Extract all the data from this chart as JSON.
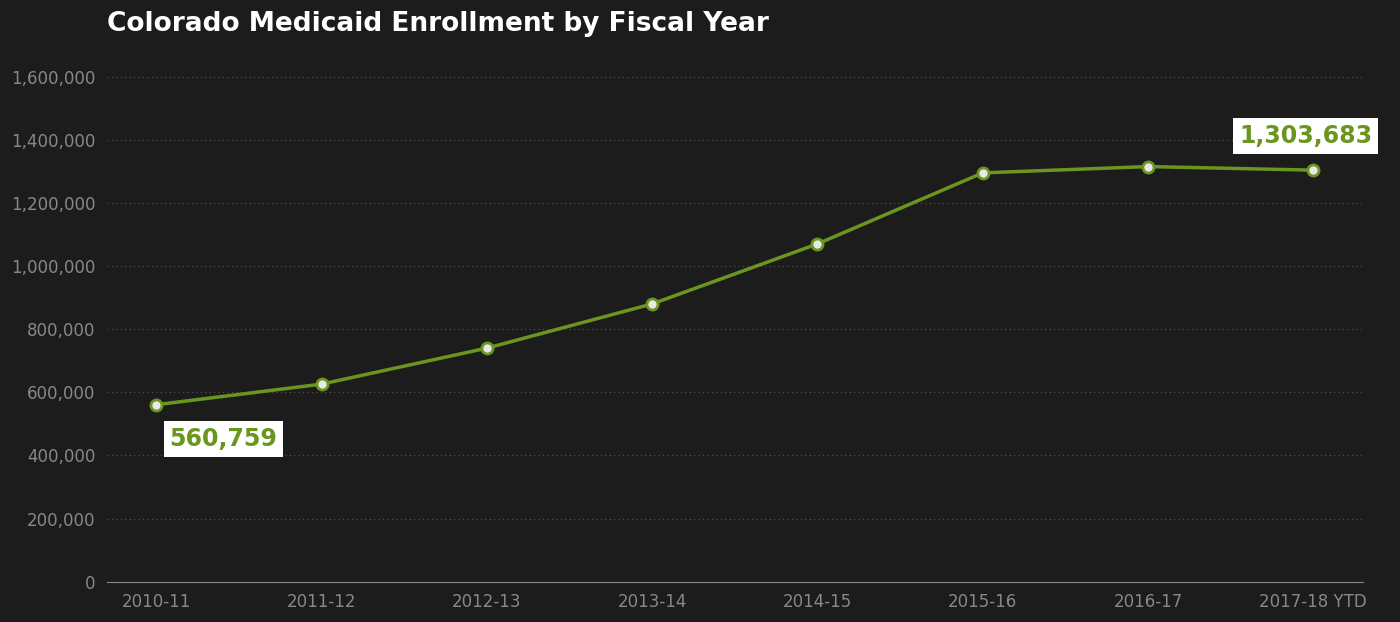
{
  "title": "Colorado Medicaid Enrollment by Fiscal Year",
  "x_labels": [
    "2010-11",
    "2011-12",
    "2012-13",
    "2013-14",
    "2014-15",
    "2015-16",
    "2016-17",
    "2017-18 YTD"
  ],
  "y_values": [
    560759,
    626000,
    740000,
    880000,
    1070000,
    1295000,
    1315000,
    1303683
  ],
  "ylim": [
    0,
    1700000
  ],
  "yticks": [
    0,
    200000,
    400000,
    600000,
    800000,
    1000000,
    1200000,
    1400000,
    1600000
  ],
  "line_color": "#6a961f",
  "marker_color": "#6a961f",
  "marker_face_color": "#e8e8e8",
  "bg_color": "#1c1c1c",
  "title_color": "#ffffff",
  "axis_label_color": "#888888",
  "grid_color": "#555555",
  "annotation_first_text": "560,759",
  "annotation_last_text": "1,303,683",
  "annotation_bg": "#ffffff",
  "annotation_text_color": "#6a961f",
  "title_fontsize": 19,
  "tick_fontsize": 12,
  "annotation_fontsize": 17
}
